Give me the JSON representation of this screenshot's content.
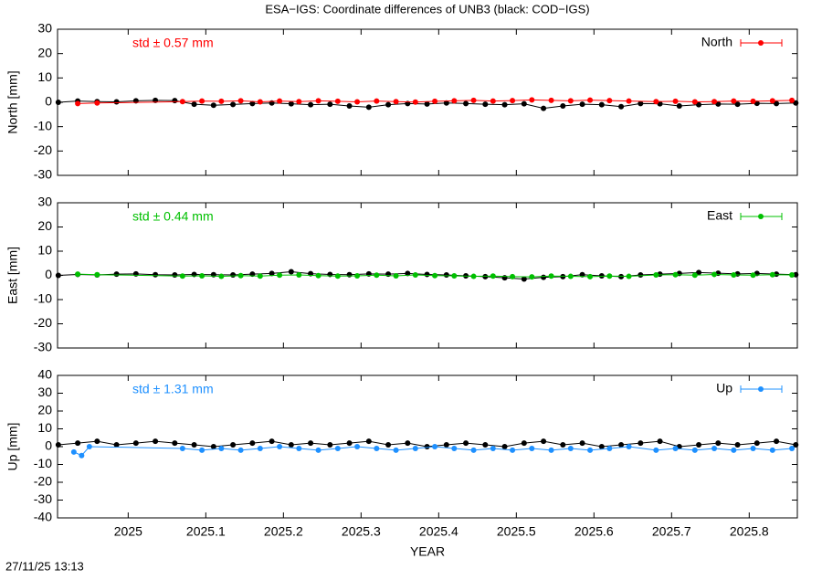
{
  "title": "ESA−IGS: Coordinate differences of UNB3 (black: COD−IGS)",
  "timestamp": "27/11/25 13:13",
  "chart_data": [
    {
      "type": "line",
      "ylabel": "North [mm]",
      "annotation": "std ± 0.57 mm",
      "xlim": [
        2024.909,
        2025.862
      ],
      "xticks": [
        2025,
        2025.1,
        2025.2,
        2025.3,
        2025.4,
        2025.5,
        2025.6,
        2025.7,
        2025.8
      ],
      "ylim": [
        -30,
        30
      ],
      "yticks": [
        -30,
        -20,
        -10,
        0,
        10,
        20,
        30
      ],
      "series": [
        {
          "color": "#000000",
          "x": [
            2024.91,
            2024.935,
            2024.96,
            2024.985,
            2025.01,
            2025.035,
            2025.06,
            2025.085,
            2025.11,
            2025.135,
            2025.16,
            2025.185,
            2025.21,
            2025.235,
            2025.26,
            2025.285,
            2025.31,
            2025.335,
            2025.36,
            2025.385,
            2025.41,
            2025.435,
            2025.46,
            2025.485,
            2025.51,
            2025.535,
            2025.56,
            2025.585,
            2025.61,
            2025.635,
            2025.66,
            2025.685,
            2025.71,
            2025.735,
            2025.76,
            2025.785,
            2025.81,
            2025.835,
            2025.86
          ],
          "values": [
            0,
            0.5,
            0.3,
            0.2,
            0.6,
            0.8,
            0.7,
            -0.8,
            -1.2,
            -0.9,
            -0.5,
            -0.3,
            -0.6,
            -1,
            -0.8,
            -1.5,
            -2,
            -1,
            -0.5,
            -0.7,
            -0.3,
            -0.5,
            -0.8,
            -1,
            -0.6,
            -2.5,
            -1.5,
            -0.8,
            -1,
            -1.8,
            -0.5,
            -0.6,
            -1.5,
            -1,
            -0.7,
            -0.8,
            -0.4,
            -0.5,
            -0.3
          ]
        },
        {
          "name": "North",
          "color": "#ff0000",
          "x": [
            2024.935,
            2024.96,
            2025.07,
            2025.095,
            2025.12,
            2025.145,
            2025.17,
            2025.195,
            2025.22,
            2025.245,
            2025.27,
            2025.295,
            2025.32,
            2025.345,
            2025.37,
            2025.395,
            2025.42,
            2025.445,
            2025.47,
            2025.495,
            2025.52,
            2025.545,
            2025.57,
            2025.595,
            2025.62,
            2025.645,
            2025.68,
            2025.705,
            2025.73,
            2025.755,
            2025.78,
            2025.805,
            2025.83,
            2025.855
          ],
          "values": [
            -0.5,
            -0.3,
            0.3,
            0.5,
            0.4,
            0.6,
            0.2,
            0.5,
            0.3,
            0.6,
            0.4,
            0.2,
            0.5,
            0.3,
            0.1,
            0.4,
            0.6,
            0.8,
            0.5,
            0.7,
            1,
            0.8,
            0.6,
            0.9,
            0.7,
            0.5,
            0.3,
            0.4,
            0.2,
            0.3,
            0.5,
            0.4,
            0.6,
            0.8
          ]
        }
      ]
    },
    {
      "type": "line",
      "ylabel": "East [mm]",
      "annotation": "std ± 0.44 mm",
      "xlim": [
        2024.909,
        2025.862
      ],
      "xticks": [
        2025,
        2025.1,
        2025.2,
        2025.3,
        2025.4,
        2025.5,
        2025.6,
        2025.7,
        2025.8
      ],
      "ylim": [
        -30,
        30
      ],
      "yticks": [
        -30,
        -20,
        -10,
        0,
        10,
        20,
        30
      ],
      "series": [
        {
          "color": "#000000",
          "x": [
            2024.91,
            2024.935,
            2024.96,
            2024.985,
            2025.01,
            2025.035,
            2025.06,
            2025.085,
            2025.11,
            2025.135,
            2025.16,
            2025.185,
            2025.21,
            2025.235,
            2025.26,
            2025.285,
            2025.31,
            2025.335,
            2025.36,
            2025.385,
            2025.41,
            2025.435,
            2025.46,
            2025.485,
            2025.51,
            2025.535,
            2025.56,
            2025.585,
            2025.61,
            2025.635,
            2025.66,
            2025.685,
            2025.71,
            2025.735,
            2025.76,
            2025.785,
            2025.81,
            2025.835,
            2025.86
          ],
          "values": [
            0,
            0.4,
            0.2,
            0.5,
            0.6,
            0.3,
            0.2,
            0.4,
            0.3,
            0.2,
            0.5,
            0.8,
            1.5,
            0.7,
            0.4,
            0.3,
            0.6,
            0.5,
            0.8,
            0.4,
            0.2,
            -0.2,
            -0.5,
            -1,
            -1.5,
            -0.8,
            -0.5,
            0.3,
            -0.2,
            -0.5,
            0.2,
            0.5,
            0.8,
            1.2,
            0.9,
            0.6,
            0.8,
            0.5,
            0.3
          ]
        },
        {
          "name": "East",
          "color": "#00c000",
          "x": [
            2024.935,
            2024.96,
            2025.07,
            2025.095,
            2025.12,
            2025.145,
            2025.17,
            2025.195,
            2025.22,
            2025.245,
            2025.27,
            2025.295,
            2025.32,
            2025.345,
            2025.37,
            2025.395,
            2025.42,
            2025.445,
            2025.47,
            2025.495,
            2025.52,
            2025.545,
            2025.57,
            2025.595,
            2025.62,
            2025.645,
            2025.68,
            2025.705,
            2025.73,
            2025.755,
            2025.78,
            2025.805,
            2025.83,
            2025.855
          ],
          "values": [
            0.5,
            0.3,
            -0.3,
            -0.2,
            -0.4,
            -0.1,
            -0.3,
            0.1,
            0.2,
            -0.1,
            -0.3,
            -0.2,
            0.1,
            -0.2,
            0.2,
            -0.1,
            -0.2,
            -0.4,
            -0.3,
            -0.5,
            -0.6,
            -0.3,
            -0.4,
            -0.5,
            -0.3,
            -0.4,
            0.2,
            0.3,
            0.1,
            0.4,
            0.2,
            0.1,
            0.3,
            0.2
          ]
        }
      ]
    },
    {
      "type": "line",
      "ylabel": "Up [mm]",
      "annotation": "std ± 1.31 mm",
      "xlabel": "YEAR",
      "xlim": [
        2024.909,
        2025.862
      ],
      "xticks": [
        2025,
        2025.1,
        2025.2,
        2025.3,
        2025.4,
        2025.5,
        2025.6,
        2025.7,
        2025.8
      ],
      "ylim": [
        -40,
        40
      ],
      "yticks": [
        -40,
        -30,
        -20,
        -10,
        0,
        10,
        20,
        30,
        40
      ],
      "series": [
        {
          "color": "#000000",
          "x": [
            2024.91,
            2024.935,
            2024.96,
            2024.985,
            2025.01,
            2025.035,
            2025.06,
            2025.085,
            2025.11,
            2025.135,
            2025.16,
            2025.185,
            2025.21,
            2025.235,
            2025.26,
            2025.285,
            2025.31,
            2025.335,
            2025.36,
            2025.385,
            2025.41,
            2025.435,
            2025.46,
            2025.485,
            2025.51,
            2025.535,
            2025.56,
            2025.585,
            2025.61,
            2025.635,
            2025.66,
            2025.685,
            2025.71,
            2025.735,
            2025.76,
            2025.785,
            2025.81,
            2025.835,
            2025.86
          ],
          "values": [
            1,
            2,
            3,
            1,
            2,
            3,
            2,
            1,
            0,
            1,
            2,
            3,
            1,
            2,
            1,
            2,
            3,
            1,
            2,
            0,
            1,
            2,
            1,
            0,
            2,
            3,
            1,
            2,
            0,
            1,
            2,
            3,
            0,
            1,
            2,
            1,
            2,
            3,
            1
          ]
        },
        {
          "name": "Up",
          "color": "#1e90ff",
          "x": [
            2024.93,
            2024.94,
            2024.95,
            2025.07,
            2025.095,
            2025.12,
            2025.145,
            2025.17,
            2025.195,
            2025.22,
            2025.245,
            2025.27,
            2025.295,
            2025.32,
            2025.345,
            2025.37,
            2025.395,
            2025.42,
            2025.445,
            2025.47,
            2025.495,
            2025.52,
            2025.545,
            2025.57,
            2025.595,
            2025.62,
            2025.645,
            2025.68,
            2025.705,
            2025.73,
            2025.755,
            2025.78,
            2025.805,
            2025.83,
            2025.855
          ],
          "values": [
            -3,
            -5,
            0,
            -1,
            -2,
            -1,
            -2,
            -1,
            0,
            -1,
            -2,
            -1,
            0,
            -1,
            -2,
            -1,
            0,
            -1,
            -2,
            -1,
            -2,
            -1,
            -2,
            -1,
            -2,
            -1,
            0,
            -2,
            -1,
            -2,
            -1,
            -2,
            -1,
            -2,
            -1
          ]
        }
      ]
    }
  ]
}
